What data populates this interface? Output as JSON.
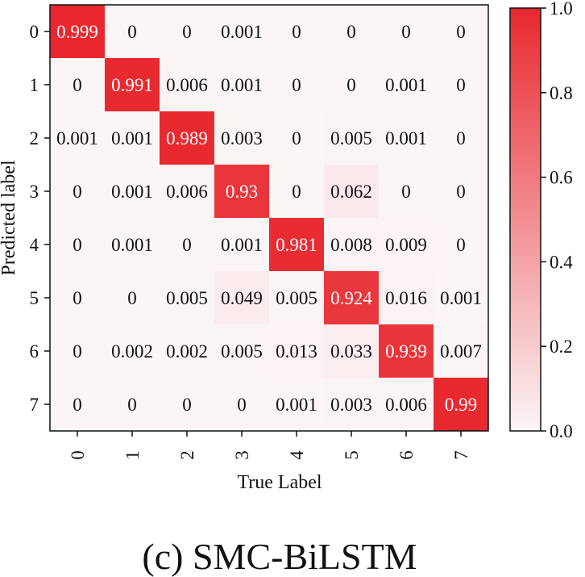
{
  "chart_data": {
    "type": "heatmap",
    "x_categories": [
      "0",
      "1",
      "2",
      "3",
      "4",
      "5",
      "6",
      "7"
    ],
    "y_categories": [
      "0",
      "1",
      "2",
      "3",
      "4",
      "5",
      "6",
      "7"
    ],
    "xlabel": "True Label",
    "ylabel": "Predicted label",
    "values": [
      [
        0.999,
        0,
        0,
        0.001,
        0,
        0,
        0,
        0
      ],
      [
        0,
        0.991,
        0.006,
        0.001,
        0,
        0,
        0.001,
        0
      ],
      [
        0.001,
        0.001,
        0.989,
        0.003,
        0,
        0.005,
        0.001,
        0
      ],
      [
        0,
        0.001,
        0.006,
        0.93,
        0,
        0.062,
        0,
        0
      ],
      [
        0,
        0.001,
        0,
        0.001,
        0.981,
        0.008,
        0.009,
        0
      ],
      [
        0,
        0,
        0.005,
        0.049,
        0.005,
        0.924,
        0.016,
        0.001
      ],
      [
        0,
        0.002,
        0.002,
        0.005,
        0.013,
        0.033,
        0.939,
        0.007
      ],
      [
        0,
        0,
        0,
        0,
        0.001,
        0.003,
        0.006,
        0.99
      ]
    ],
    "labels": [
      [
        "0.999",
        "0",
        "0",
        "0.001",
        "0",
        "0",
        "0",
        "0"
      ],
      [
        "0",
        "0.991",
        "0.006",
        "0.001",
        "0",
        "0",
        "0.001",
        "0"
      ],
      [
        "0.001",
        "0.001",
        "0.989",
        "0.003",
        "0",
        "0.005",
        "0.001",
        "0"
      ],
      [
        "0",
        "0.001",
        "0.006",
        "0.93",
        "0",
        "0.062",
        "0",
        "0"
      ],
      [
        "0",
        "0.001",
        "0",
        "0.001",
        "0.981",
        "0.008",
        "0.009",
        "0"
      ],
      [
        "0",
        "0",
        "0.005",
        "0.049",
        "0.005",
        "0.924",
        "0.016",
        "0.001"
      ],
      [
        "0",
        "0.002",
        "0.002",
        "0.005",
        "0.013",
        "0.033",
        "0.939",
        "0.007"
      ],
      [
        "0",
        "0",
        "0",
        "0",
        "0.001",
        "0.003",
        "0.006",
        "0.99"
      ]
    ],
    "colorbar": {
      "range": [
        0.0,
        1.0
      ],
      "ticks": [
        0.0,
        0.2,
        0.4,
        0.6,
        0.8,
        1.0
      ],
      "tick_labels": [
        "0.0",
        "0.2",
        "0.4",
        "0.6",
        "0.8",
        "1.0"
      ],
      "color_low": "#fbf5f6",
      "color_high": "#e8282e"
    }
  },
  "caption": "(c) SMC-BiLSTM"
}
